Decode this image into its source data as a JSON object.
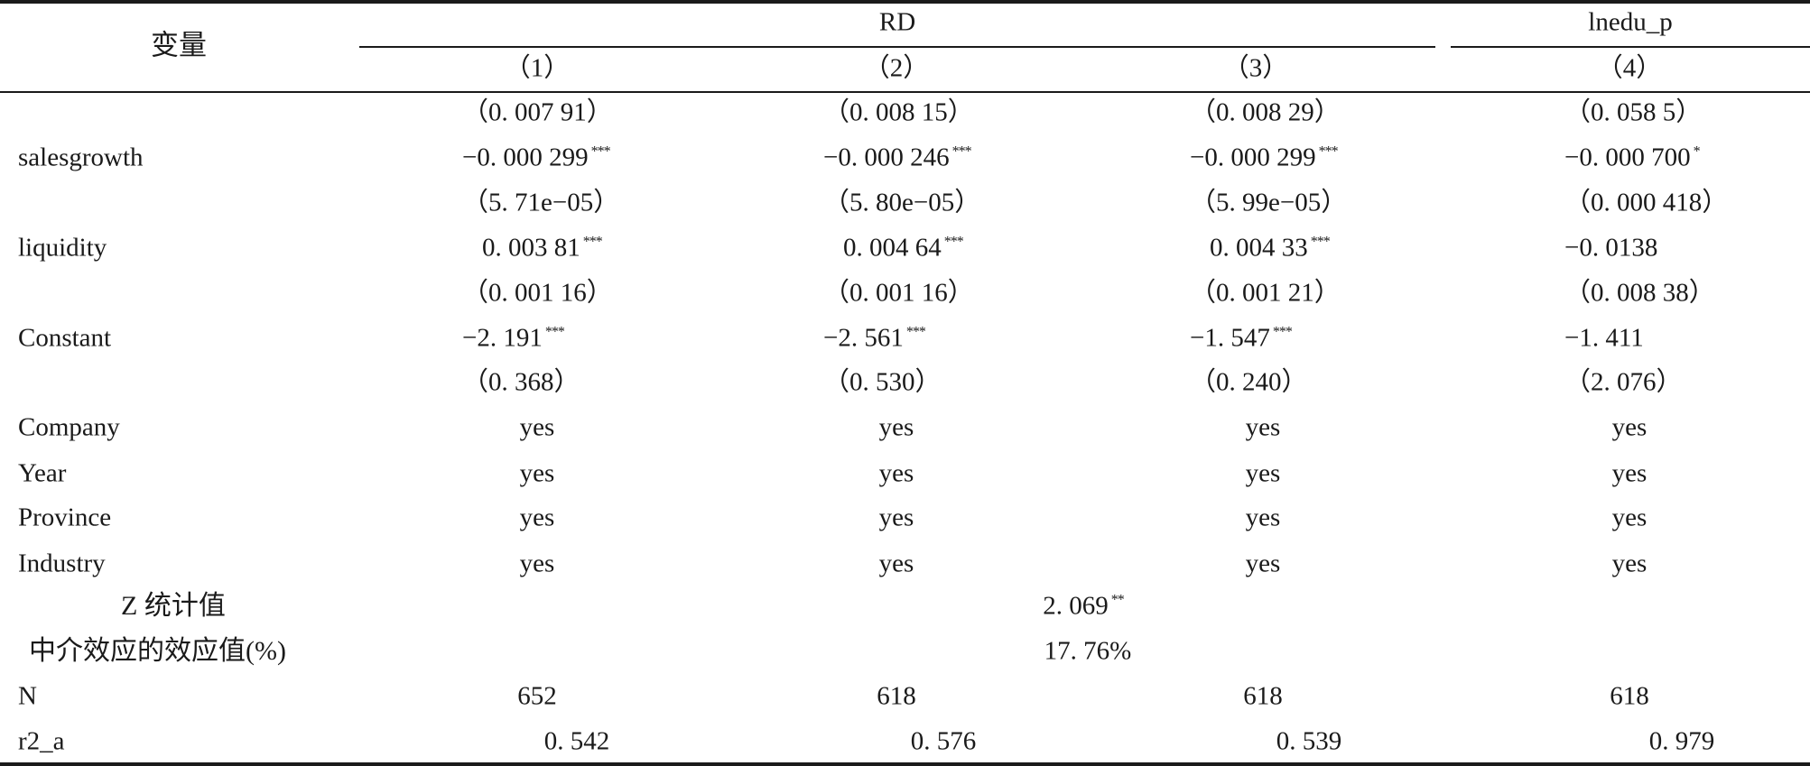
{
  "header": {
    "variable_label": "变量",
    "group_rd": "RD",
    "group_lnedu": "lnedu_p",
    "columns": [
      "（1）",
      "（2）",
      "（3）",
      "（4）"
    ]
  },
  "rows": [
    {
      "label": "",
      "values": [
        {
          "v": "（0. 007 91）",
          "s": ""
        },
        {
          "v": "（0. 008 15）",
          "s": ""
        },
        {
          "v": "（0. 008 29）",
          "s": ""
        },
        {
          "v": "（0. 058 5）",
          "s": ""
        }
      ]
    },
    {
      "label": "salesgrowth",
      "values": [
        {
          "v": "−0. 000 299",
          "s": "***"
        },
        {
          "v": "−0. 000 246",
          "s": "***"
        },
        {
          "v": "−0. 000 299",
          "s": "***"
        },
        {
          "v": "−0. 000 700",
          "s": "*"
        }
      ]
    },
    {
      "label": "",
      "values": [
        {
          "v": "（5. 71e−05）",
          "s": ""
        },
        {
          "v": "（5. 80e−05）",
          "s": ""
        },
        {
          "v": "（5. 99e−05）",
          "s": ""
        },
        {
          "v": "（0. 000 418）",
          "s": ""
        }
      ]
    },
    {
      "label": "liquidity",
      "values": [
        {
          "v": "0. 003 81",
          "s": "***"
        },
        {
          "v": "0. 004 64",
          "s": "***"
        },
        {
          "v": "0. 004 33",
          "s": "***"
        },
        {
          "v": "−0. 0138",
          "s": ""
        }
      ]
    },
    {
      "label": "",
      "values": [
        {
          "v": "（0. 001 16）",
          "s": ""
        },
        {
          "v": "（0. 001 16）",
          "s": ""
        },
        {
          "v": "（0. 001 21）",
          "s": ""
        },
        {
          "v": "（0. 008 38）",
          "s": ""
        }
      ]
    },
    {
      "label": "Constant",
      "values": [
        {
          "v": "−2. 191",
          "s": "***"
        },
        {
          "v": "−2. 561",
          "s": "***"
        },
        {
          "v": "−1. 547",
          "s": "***"
        },
        {
          "v": "−1. 411",
          "s": ""
        }
      ]
    },
    {
      "label": "",
      "values": [
        {
          "v": "（0. 368）",
          "s": ""
        },
        {
          "v": "（0. 530）",
          "s": ""
        },
        {
          "v": "（0. 240）",
          "s": ""
        },
        {
          "v": "（2. 076）",
          "s": ""
        }
      ]
    },
    {
      "label": "Company",
      "values": [
        {
          "v": "yes",
          "s": ""
        },
        {
          "v": "yes",
          "s": ""
        },
        {
          "v": "yes",
          "s": ""
        },
        {
          "v": "yes",
          "s": ""
        }
      ]
    },
    {
      "label": "Year",
      "values": [
        {
          "v": "yes",
          "s": ""
        },
        {
          "v": "yes",
          "s": ""
        },
        {
          "v": "yes",
          "s": ""
        },
        {
          "v": "yes",
          "s": ""
        }
      ]
    },
    {
      "label": "Province",
      "values": [
        {
          "v": "yes",
          "s": ""
        },
        {
          "v": "yes",
          "s": ""
        },
        {
          "v": "yes",
          "s": ""
        },
        {
          "v": "yes",
          "s": ""
        }
      ]
    },
    {
      "label": "Industry",
      "values": [
        {
          "v": "yes",
          "s": ""
        },
        {
          "v": "yes",
          "s": ""
        },
        {
          "v": "yes",
          "s": ""
        },
        {
          "v": "yes",
          "s": ""
        }
      ]
    }
  ],
  "z_stat": {
    "label": "Z 统计值",
    "value": "2. 069",
    "stars": "**"
  },
  "mediation": {
    "label": "中介效应的效应值(%)",
    "value": "17. 76%"
  },
  "n_row": {
    "label": "N",
    "values": [
      "652",
      "618",
      "618",
      "618"
    ]
  },
  "r2_row": {
    "label": "r2_a",
    "values": [
      "0. 542",
      "0. 576",
      "0. 539",
      "0. 979"
    ]
  }
}
